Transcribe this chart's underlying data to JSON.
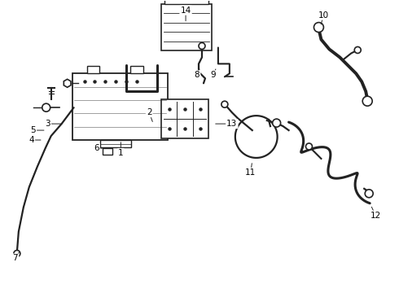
{
  "background_color": "#ffffff",
  "line_color": "#222222",
  "label_color": "#000000",
  "figsize": [
    4.9,
    3.6
  ],
  "dpi": 100,
  "labels": {
    "1": [
      148,
      172,
      148,
      188
    ],
    "2": [
      183,
      222,
      188,
      208
    ],
    "3": [
      58,
      208,
      78,
      208
    ],
    "4": [
      38,
      188,
      52,
      188
    ],
    "5": [
      40,
      200,
      56,
      200
    ],
    "6": [
      118,
      178,
      132,
      178
    ],
    "7": [
      18,
      42,
      24,
      52
    ],
    "8": [
      242,
      268,
      246,
      278
    ],
    "9": [
      262,
      268,
      266,
      278
    ],
    "10": [
      398,
      342,
      394,
      328
    ],
    "11": [
      308,
      148,
      310,
      162
    ],
    "12": [
      462,
      95,
      456,
      108
    ],
    "13": [
      285,
      208,
      262,
      208
    ],
    "14": [
      228,
      348,
      228,
      332
    ]
  }
}
